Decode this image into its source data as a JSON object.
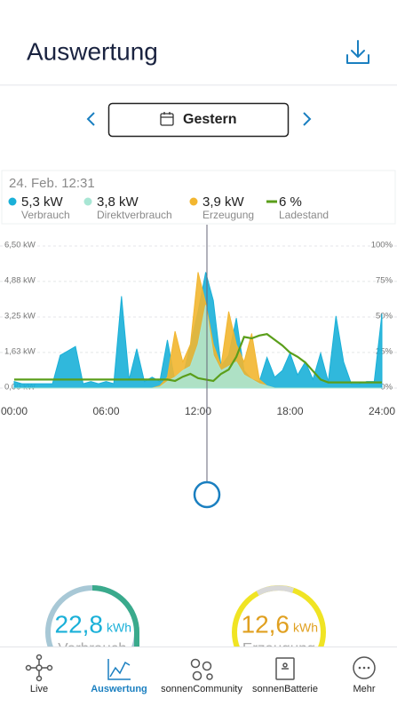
{
  "header": {
    "title": "Auswertung"
  },
  "date_nav": {
    "label": "Gestern"
  },
  "tooltip": {
    "time": "24. Feb. 12:31",
    "items": [
      {
        "value": "5,3 kW",
        "name": "Verbrauch",
        "color": "#1ab0d8"
      },
      {
        "value": "3,8 kW",
        "name": "Direktverbrauch",
        "color": "#a8e6d4"
      },
      {
        "value": "3,9 kW",
        "name": "Erzeugung",
        "color": "#f2b630"
      },
      {
        "value": "6 %",
        "name": "Ladestand",
        "color": "#5a9e1a"
      }
    ]
  },
  "chart_data": {
    "type": "area",
    "x": [
      0,
      0.5,
      1,
      1.5,
      2,
      2.5,
      3,
      3.5,
      4,
      4.5,
      5,
      5.5,
      6,
      6.5,
      7,
      7.5,
      8,
      8.5,
      9,
      9.5,
      10,
      10.5,
      11,
      11.5,
      12,
      12.5,
      13,
      13.5,
      14,
      14.5,
      15,
      15.5,
      16,
      16.5,
      17,
      17.5,
      18,
      18.5,
      19,
      19.5,
      20,
      20.5,
      21,
      21.5,
      22,
      22.5,
      23,
      23.5,
      24
    ],
    "xlim": [
      0,
      24
    ],
    "xticks": [
      {
        "value": 0,
        "label": "00:00"
      },
      {
        "value": 6,
        "label": "06:00"
      },
      {
        "value": 12,
        "label": "12:00"
      },
      {
        "value": 18,
        "label": "18:00"
      },
      {
        "value": 24,
        "label": "24:00"
      }
    ],
    "ylim": [
      0,
      6.5
    ],
    "yticks": [
      {
        "value": 0,
        "label": "0,00 kW"
      },
      {
        "value": 1.63,
        "label": "1,63 kW"
      },
      {
        "value": 3.25,
        "label": "3,25 kW"
      },
      {
        "value": 4.88,
        "label": "4,88 kW"
      },
      {
        "value": 6.5,
        "label": "6,50 kW"
      }
    ],
    "y2lim": [
      0,
      100
    ],
    "y2ticks": [
      {
        "value": 0,
        "label": "0%"
      },
      {
        "value": 25,
        "label": "25%"
      },
      {
        "value": 50,
        "label": "50%"
      },
      {
        "value": 75,
        "label": "75%"
      },
      {
        "value": 100,
        "label": "100%"
      }
    ],
    "grid": true,
    "series": [
      {
        "name": "Verbrauch",
        "color": "#1ab0d8",
        "values": [
          0.3,
          0.2,
          0.2,
          0.2,
          0.2,
          0.2,
          1.5,
          1.7,
          1.9,
          0.2,
          0.3,
          0.2,
          0.3,
          0.2,
          4.2,
          0.4,
          1.8,
          0.3,
          0.5,
          0.3,
          2.2,
          0.3,
          0.5,
          2.0,
          3.5,
          5.3,
          4.0,
          1.0,
          1.5,
          3.2,
          0.8,
          0.4,
          0.3,
          1.4,
          0.5,
          0.8,
          1.6,
          0.6,
          1.2,
          0.4,
          1.6,
          0.3,
          3.3,
          1.2,
          0.2,
          0.2,
          0.3,
          0.3,
          3.4
        ]
      },
      {
        "name": "Erzeugung",
        "color": "#f2b630",
        "values": [
          0,
          0,
          0,
          0,
          0,
          0,
          0,
          0,
          0,
          0,
          0,
          0,
          0,
          0,
          0,
          0,
          0,
          0,
          0,
          0.1,
          0.5,
          2.6,
          1.2,
          2.0,
          5.3,
          3.9,
          2.0,
          1.0,
          3.5,
          2.0,
          1.2,
          2.5,
          0.4,
          0.1,
          0,
          0,
          0,
          0,
          0,
          0,
          0,
          0,
          0,
          0,
          0,
          0,
          0,
          0,
          0
        ]
      },
      {
        "name": "Direktverbrauch",
        "color": "#a8e6d4",
        "values": [
          0,
          0,
          0,
          0,
          0,
          0,
          0,
          0,
          0,
          0,
          0,
          0,
          0,
          0,
          0,
          0,
          0,
          0,
          0,
          0.05,
          0.3,
          0.5,
          0.8,
          1.0,
          2.0,
          3.8,
          1.5,
          0.8,
          1.0,
          1.2,
          0.6,
          0.4,
          0.2,
          0.1,
          0,
          0,
          0,
          0,
          0,
          0,
          0,
          0,
          0,
          0,
          0,
          0,
          0,
          0,
          0
        ]
      },
      {
        "name": "Ladestand",
        "color": "#5a9e1a",
        "axis": "y2",
        "values": [
          6,
          6,
          6,
          6,
          6,
          6,
          6,
          6,
          6,
          6,
          6,
          6,
          6,
          6,
          6,
          6,
          6,
          6,
          6,
          6,
          6,
          5,
          8,
          10,
          7,
          6,
          5,
          10,
          13,
          22,
          36,
          35,
          37,
          38,
          34,
          30,
          25,
          22,
          18,
          12,
          6,
          4,
          4,
          4,
          4,
          4,
          4,
          4,
          4
        ]
      }
    ]
  },
  "summary": [
    {
      "value": "22,8",
      "unit": "kWh",
      "label": "Verbrauch"
    },
    {
      "value": "12,6",
      "unit": "kWh",
      "label": "Erzeugung"
    }
  ],
  "tabs": [
    "Live",
    "Auswertung",
    "sonnenCommunity",
    "sonnenBatterie",
    "Mehr"
  ]
}
